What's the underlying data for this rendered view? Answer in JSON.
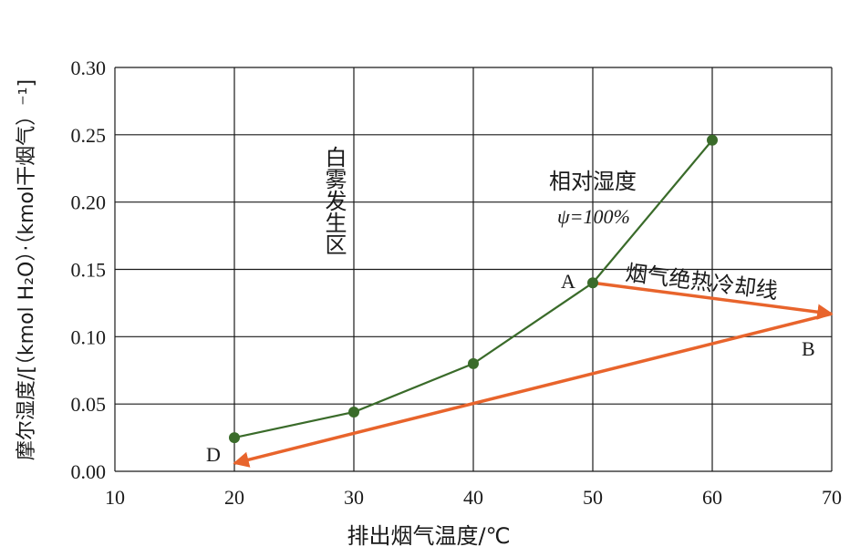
{
  "chart_data": {
    "type": "line",
    "xlabel": "排出烟气温度/℃",
    "ylabel": "摩尔湿度/[（kmol H₂O）·（kmol干烟气）⁻¹]",
    "xlim": [
      10,
      70
    ],
    "ylim": [
      0,
      0.3
    ],
    "x_ticks": [
      "10",
      "20",
      "30",
      "40",
      "50",
      "60",
      "70"
    ],
    "y_ticks": [
      "0.00",
      "0.05",
      "0.10",
      "0.15",
      "0.20",
      "0.25",
      "0.30"
    ],
    "grid": true,
    "colors": {
      "saturation": "#3a6b2a",
      "cooling": "#e8642c"
    },
    "series": [
      {
        "name": "相对湿度 ψ=100%",
        "x": [
          20,
          30,
          40,
          50,
          60
        ],
        "y": [
          0.025,
          0.044,
          0.08,
          0.14,
          0.246
        ]
      }
    ],
    "arrows": [
      {
        "from": [
          50,
          0.14
        ],
        "to": [
          70,
          0.117
        ]
      },
      {
        "from": [
          70,
          0.117
        ],
        "to": [
          20,
          0.006
        ]
      }
    ],
    "annotations": {
      "fog_zone": "白雾发生区",
      "rh_title": "相对湿度",
      "rh_value": "ψ=100%",
      "cooling_line": "烟气绝热冷却线",
      "point_a": "A",
      "point_b": "B",
      "point_d": "D"
    }
  }
}
